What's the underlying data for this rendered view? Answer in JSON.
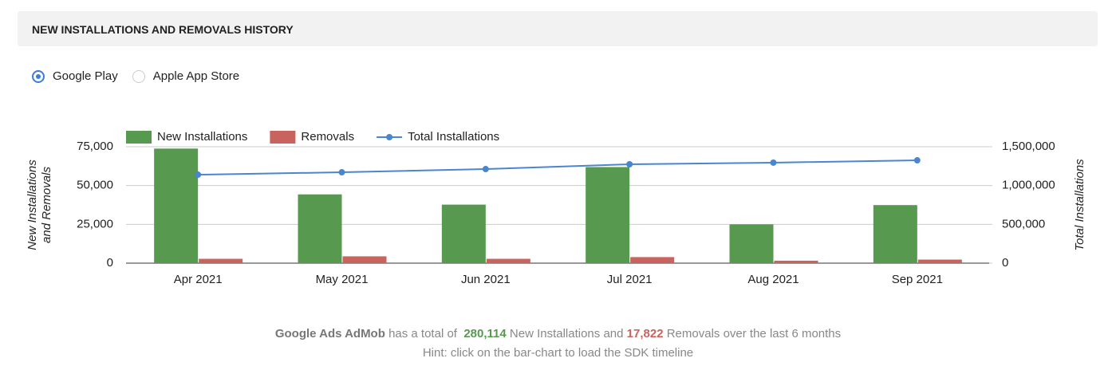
{
  "header": {
    "title": "NEW INSTALLATIONS AND REMOVALS HISTORY"
  },
  "store_options": [
    "Google Play",
    "Apple App Store"
  ],
  "chart_data": {
    "type": "combo",
    "ylabel": [
      "New Installations",
      "and Removals"
    ],
    "y2label": "Total Installations",
    "categories": [
      "Apr 2021",
      "May 2021",
      "Jun 2021",
      "Jul 2021",
      "Aug 2021",
      "Sep 2021"
    ],
    "series": [
      {
        "name": "New Installations",
        "type": "bar",
        "color": "#57994f",
        "values": [
          73800,
          44300,
          37700,
          61900,
          25000,
          37400
        ]
      },
      {
        "name": "Removals",
        "type": "bar",
        "color": "#c9635e",
        "values": [
          2800,
          4400,
          2800,
          3900,
          1600,
          2300
        ]
      },
      {
        "name": "Total Installations",
        "type": "line",
        "axis": "y2",
        "color": "#4a86cf",
        "values": [
          1140000,
          1171000,
          1212000,
          1274000,
          1295000,
          1325000
        ]
      }
    ],
    "ylim": [
      0,
      75000
    ],
    "yticks": [
      0,
      {
        "value": 25000,
        "label": "25,000"
      },
      {
        "value": 50000,
        "label": "50,000"
      },
      {
        "value": 75000,
        "label": "75,000"
      }
    ],
    "y2lim": [
      0,
      1500000
    ],
    "y2ticks": [
      0,
      {
        "value": 500000,
        "label": "500,000"
      },
      {
        "value": 1000000,
        "label": "1,000,000"
      },
      {
        "value": 1500000,
        "label": "1,500,000"
      }
    ],
    "grid": true,
    "legend": "top"
  },
  "footer": {
    "app": "Google Ads AdMob",
    "text1": "has a total of",
    "installs": "280,114",
    "text2": "New Installations and",
    "removals": "17,822",
    "text3": "Removals over the last 6 months",
    "hint": "Hint: click on the bar-chart to load the SDK timeline"
  }
}
